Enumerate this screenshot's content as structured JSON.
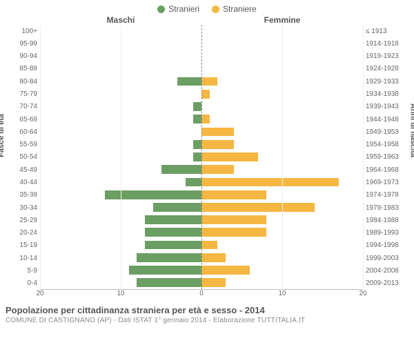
{
  "legend": {
    "male": {
      "label": "Stranieri",
      "color": "#6b9e63"
    },
    "female": {
      "label": "Straniere",
      "color": "#f5b742"
    }
  },
  "headers": {
    "left": "Maschi",
    "right": "Femmine"
  },
  "axis": {
    "left_label": "Fasce di età",
    "right_label": "Anni di nascita",
    "x_max": 20,
    "x_ticks": [
      20,
      10,
      0,
      10,
      20
    ],
    "grid_color": "#eeeeee",
    "center_line_color": "#888888"
  },
  "style": {
    "bar_fill_opacity": 1,
    "bg": "#ffffff",
    "tick_font_size": 10,
    "label_color": "#666666"
  },
  "rows": [
    {
      "age": "100+",
      "birth": "≤ 1913",
      "m": 0,
      "f": 0
    },
    {
      "age": "95-99",
      "birth": "1914-1918",
      "m": 0,
      "f": 0
    },
    {
      "age": "90-94",
      "birth": "1919-1923",
      "m": 0,
      "f": 0
    },
    {
      "age": "85-89",
      "birth": "1924-1928",
      "m": 0,
      "f": 0
    },
    {
      "age": "80-84",
      "birth": "1929-1933",
      "m": 3,
      "f": 2
    },
    {
      "age": "75-79",
      "birth": "1934-1938",
      "m": 0,
      "f": 1
    },
    {
      "age": "70-74",
      "birth": "1939-1943",
      "m": 1,
      "f": 0
    },
    {
      "age": "65-69",
      "birth": "1944-1948",
      "m": 1,
      "f": 1
    },
    {
      "age": "60-64",
      "birth": "1949-1953",
      "m": 0,
      "f": 4
    },
    {
      "age": "55-59",
      "birth": "1954-1958",
      "m": 1,
      "f": 4
    },
    {
      "age": "50-54",
      "birth": "1959-1963",
      "m": 1,
      "f": 7
    },
    {
      "age": "45-49",
      "birth": "1964-1968",
      "m": 5,
      "f": 4
    },
    {
      "age": "40-44",
      "birth": "1969-1973",
      "m": 2,
      "f": 17
    },
    {
      "age": "35-39",
      "birth": "1974-1978",
      "m": 12,
      "f": 8
    },
    {
      "age": "30-34",
      "birth": "1979-1983",
      "m": 6,
      "f": 14
    },
    {
      "age": "25-29",
      "birth": "1984-1988",
      "m": 7,
      "f": 8
    },
    {
      "age": "20-24",
      "birth": "1989-1993",
      "m": 7,
      "f": 8
    },
    {
      "age": "15-19",
      "birth": "1994-1998",
      "m": 7,
      "f": 2
    },
    {
      "age": "10-14",
      "birth": "1999-2003",
      "m": 8,
      "f": 3
    },
    {
      "age": "5-9",
      "birth": "2004-2008",
      "m": 9,
      "f": 6
    },
    {
      "age": "0-4",
      "birth": "2009-2013",
      "m": 8,
      "f": 3
    }
  ],
  "caption": {
    "title": "Popolazione per cittadinanza straniera per età e sesso - 2014",
    "sub": "COMUNE DI CASTIGNANO (AP) - Dati ISTAT 1° gennaio 2014 - Elaborazione TUTTITALIA.IT"
  }
}
